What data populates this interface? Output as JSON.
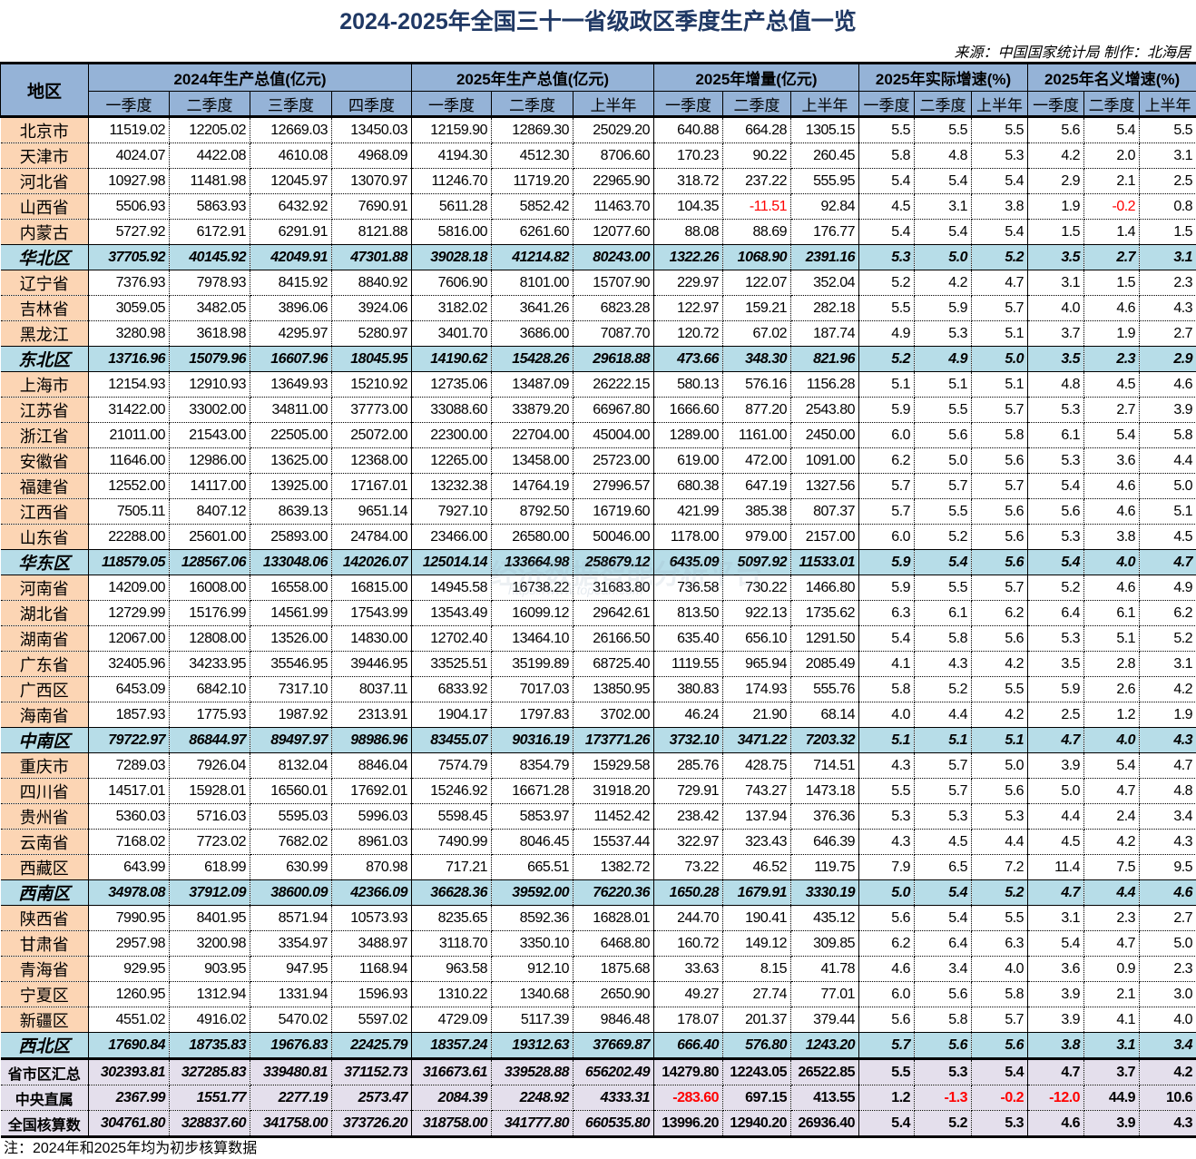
{
  "header": {
    "title": "2024-2025年全国三十一省级政区季度生产总值一览",
    "source": "来源：中国国家统计局  制作：北海居"
  },
  "table": {
    "region_header": "地区",
    "groups": [
      {
        "label": "2024年生产总值(亿元)",
        "span": 4
      },
      {
        "label": "2025年生产总值(亿元)",
        "span": 3
      },
      {
        "label": "2025年增量(亿元)",
        "span": 3
      },
      {
        "label": "2025年实际增速(%)",
        "span": 3
      },
      {
        "label": "2025年名义增速(%)",
        "span": 3
      }
    ],
    "sub_headers": [
      "一季度",
      "二季度",
      "三季度",
      "四季度",
      "一季度",
      "二季度",
      "上半年",
      "一季度",
      "二季度",
      "上半年",
      "一季度",
      "二季度",
      "上半年",
      "一季度",
      "二季度",
      "上半年"
    ],
    "rows": [
      {
        "type": "prov",
        "name": "北京市",
        "v": [
          "11519.02",
          "12205.02",
          "12669.03",
          "13450.03",
          "12159.90",
          "12869.30",
          "25029.20",
          "640.88",
          "664.28",
          "1305.15",
          "5.5",
          "5.5",
          "5.5",
          "5.6",
          "5.4",
          "5.5"
        ]
      },
      {
        "type": "prov",
        "name": "天津市",
        "v": [
          "4024.07",
          "4422.08",
          "4610.08",
          "4968.09",
          "4194.30",
          "4512.30",
          "8706.60",
          "170.23",
          "90.22",
          "260.45",
          "5.8",
          "4.8",
          "5.3",
          "4.2",
          "2.0",
          "3.1"
        ]
      },
      {
        "type": "prov",
        "name": "河北省",
        "v": [
          "10927.98",
          "11481.98",
          "12045.97",
          "13070.97",
          "11246.70",
          "11719.20",
          "22965.90",
          "318.72",
          "237.22",
          "555.95",
          "5.4",
          "5.4",
          "5.4",
          "2.9",
          "2.1",
          "2.5"
        ]
      },
      {
        "type": "prov",
        "name": "山西省",
        "v": [
          "5506.93",
          "5863.93",
          "6432.92",
          "7690.91",
          "5611.28",
          "5852.42",
          "11463.70",
          "104.35",
          "-11.51",
          "92.84",
          "4.5",
          "3.1",
          "3.8",
          "1.9",
          "-0.2",
          "0.8"
        ]
      },
      {
        "type": "prov",
        "name": "内蒙古",
        "v": [
          "5727.92",
          "6172.91",
          "6291.91",
          "8121.88",
          "5816.00",
          "6261.60",
          "12077.60",
          "88.08",
          "88.69",
          "176.77",
          "5.4",
          "5.4",
          "5.4",
          "1.5",
          "1.4",
          "1.5"
        ]
      },
      {
        "type": "sum",
        "name": "华北区",
        "v": [
          "37705.92",
          "40145.92",
          "42049.91",
          "47301.88",
          "39028.18",
          "41214.82",
          "80243.00",
          "1322.26",
          "1068.90",
          "2391.16",
          "5.3",
          "5.0",
          "5.2",
          "3.5",
          "2.7",
          "3.1"
        ]
      },
      {
        "type": "prov",
        "name": "辽宁省",
        "v": [
          "7376.93",
          "7978.93",
          "8415.92",
          "8840.92",
          "7606.90",
          "8101.00",
          "15707.90",
          "229.97",
          "122.07",
          "352.04",
          "5.2",
          "4.2",
          "4.7",
          "3.1",
          "1.5",
          "2.3"
        ]
      },
      {
        "type": "prov",
        "name": "吉林省",
        "v": [
          "3059.05",
          "3482.05",
          "3896.06",
          "3924.06",
          "3182.02",
          "3641.26",
          "6823.28",
          "122.97",
          "159.21",
          "282.18",
          "5.5",
          "5.9",
          "5.7",
          "4.0",
          "4.6",
          "4.3"
        ]
      },
      {
        "type": "prov",
        "name": "黑龙江",
        "v": [
          "3280.98",
          "3618.98",
          "4295.97",
          "5280.97",
          "3401.70",
          "3686.00",
          "7087.70",
          "120.72",
          "67.02",
          "187.74",
          "4.9",
          "5.3",
          "5.1",
          "3.7",
          "1.9",
          "2.7"
        ]
      },
      {
        "type": "sum",
        "name": "东北区",
        "v": [
          "13716.96",
          "15079.96",
          "16607.96",
          "18045.95",
          "14190.62",
          "15428.26",
          "29618.88",
          "473.66",
          "348.30",
          "821.96",
          "5.2",
          "4.9",
          "5.0",
          "3.5",
          "2.3",
          "2.9"
        ]
      },
      {
        "type": "prov",
        "name": "上海市",
        "v": [
          "12154.93",
          "12910.93",
          "13649.93",
          "15210.92",
          "12735.06",
          "13487.09",
          "26222.15",
          "580.13",
          "576.16",
          "1156.28",
          "5.1",
          "5.1",
          "5.1",
          "4.8",
          "4.5",
          "4.6"
        ]
      },
      {
        "type": "prov",
        "name": "江苏省",
        "v": [
          "31422.00",
          "33002.00",
          "34811.00",
          "37773.00",
          "33088.60",
          "33879.20",
          "66967.80",
          "1666.60",
          "877.20",
          "2543.80",
          "5.9",
          "5.5",
          "5.7",
          "5.3",
          "2.7",
          "3.9"
        ]
      },
      {
        "type": "prov",
        "name": "浙江省",
        "v": [
          "21011.00",
          "21543.00",
          "22505.00",
          "25072.00",
          "22300.00",
          "22704.00",
          "45004.00",
          "1289.00",
          "1161.00",
          "2450.00",
          "6.0",
          "5.6",
          "5.8",
          "6.1",
          "5.4",
          "5.8"
        ]
      },
      {
        "type": "prov",
        "name": "安徽省",
        "v": [
          "11646.00",
          "12986.00",
          "13625.00",
          "12368.00",
          "12265.00",
          "13458.00",
          "25723.00",
          "619.00",
          "472.00",
          "1091.00",
          "6.2",
          "5.0",
          "5.6",
          "5.3",
          "3.6",
          "4.4"
        ]
      },
      {
        "type": "prov",
        "name": "福建省",
        "v": [
          "12552.00",
          "14117.00",
          "13925.00",
          "17167.01",
          "13232.38",
          "14764.19",
          "27996.57",
          "680.38",
          "647.19",
          "1327.56",
          "5.7",
          "5.7",
          "5.7",
          "5.4",
          "4.6",
          "5.0"
        ]
      },
      {
        "type": "prov",
        "name": "江西省",
        "v": [
          "7505.11",
          "8407.12",
          "8639.13",
          "9651.14",
          "7927.10",
          "8792.50",
          "16719.60",
          "421.99",
          "385.38",
          "807.37",
          "5.7",
          "5.5",
          "5.6",
          "5.6",
          "4.6",
          "5.1"
        ]
      },
      {
        "type": "prov",
        "name": "山东省",
        "v": [
          "22288.00",
          "25601.00",
          "25893.00",
          "24784.00",
          "23466.00",
          "26580.00",
          "50046.00",
          "1178.00",
          "979.00",
          "2157.00",
          "6.0",
          "5.2",
          "5.6",
          "5.3",
          "3.8",
          "4.5"
        ]
      },
      {
        "type": "sum",
        "name": "华东区",
        "v": [
          "118579.05",
          "128567.06",
          "133048.06",
          "142026.07",
          "125014.14",
          "133664.98",
          "258679.12",
          "6435.09",
          "5097.92",
          "11533.01",
          "5.9",
          "5.4",
          "5.6",
          "5.4",
          "4.0",
          "4.7"
        ]
      },
      {
        "type": "prov",
        "name": "河南省",
        "v": [
          "14209.00",
          "16008.00",
          "16558.00",
          "16815.00",
          "14945.58",
          "16738.22",
          "31683.80",
          "736.58",
          "730.22",
          "1466.80",
          "5.9",
          "5.5",
          "5.7",
          "5.2",
          "4.6",
          "4.9"
        ]
      },
      {
        "type": "prov",
        "name": "湖北省",
        "v": [
          "12729.99",
          "15176.99",
          "14561.99",
          "17543.99",
          "13543.49",
          "16099.12",
          "29642.61",
          "813.50",
          "922.13",
          "1735.62",
          "6.3",
          "6.1",
          "6.2",
          "6.4",
          "6.1",
          "6.2"
        ]
      },
      {
        "type": "prov",
        "name": "湖南省",
        "v": [
          "12067.00",
          "12808.00",
          "13526.00",
          "14830.00",
          "12702.40",
          "13464.10",
          "26166.50",
          "635.40",
          "656.10",
          "1291.50",
          "5.4",
          "5.8",
          "5.6",
          "5.3",
          "5.1",
          "5.2"
        ]
      },
      {
        "type": "prov",
        "name": "广东省",
        "v": [
          "32405.96",
          "34233.95",
          "35546.95",
          "39446.95",
          "33525.51",
          "35199.89",
          "68725.40",
          "1119.55",
          "965.94",
          "2085.49",
          "4.1",
          "4.3",
          "4.2",
          "3.5",
          "2.8",
          "3.1"
        ]
      },
      {
        "type": "prov",
        "name": "广西区",
        "v": [
          "6453.09",
          "6842.10",
          "7317.10",
          "8037.11",
          "6833.92",
          "7017.03",
          "13850.95",
          "380.83",
          "174.93",
          "555.76",
          "5.8",
          "5.2",
          "5.5",
          "5.9",
          "2.6",
          "4.2"
        ]
      },
      {
        "type": "prov",
        "name": "海南省",
        "v": [
          "1857.93",
          "1775.93",
          "1987.92",
          "2313.91",
          "1904.17",
          "1797.83",
          "3702.00",
          "46.24",
          "21.90",
          "68.14",
          "4.0",
          "4.4",
          "4.2",
          "2.5",
          "1.2",
          "1.9"
        ]
      },
      {
        "type": "sum",
        "name": "中南区",
        "v": [
          "79722.97",
          "86844.97",
          "89497.97",
          "98986.96",
          "83455.07",
          "90316.19",
          "173771.26",
          "3732.10",
          "3471.22",
          "7203.32",
          "5.1",
          "5.1",
          "5.1",
          "4.7",
          "4.0",
          "4.3"
        ]
      },
      {
        "type": "prov",
        "name": "重庆市",
        "v": [
          "7289.03",
          "7926.04",
          "8132.04",
          "8846.04",
          "7574.79",
          "8354.79",
          "15929.58",
          "285.76",
          "428.75",
          "714.51",
          "4.3",
          "5.7",
          "5.0",
          "3.9",
          "5.4",
          "4.7"
        ]
      },
      {
        "type": "prov",
        "name": "四川省",
        "v": [
          "14517.01",
          "15928.01",
          "16560.01",
          "17692.01",
          "15246.92",
          "16671.28",
          "31918.20",
          "729.91",
          "743.27",
          "1473.18",
          "5.5",
          "5.7",
          "5.6",
          "5.0",
          "4.7",
          "4.8"
        ]
      },
      {
        "type": "prov",
        "name": "贵州省",
        "v": [
          "5360.03",
          "5716.03",
          "5595.03",
          "5996.03",
          "5598.45",
          "5853.97",
          "11452.42",
          "238.42",
          "137.94",
          "376.36",
          "5.3",
          "5.3",
          "5.3",
          "4.4",
          "2.4",
          "3.4"
        ]
      },
      {
        "type": "prov",
        "name": "云南省",
        "v": [
          "7168.02",
          "7723.02",
          "7682.02",
          "8961.03",
          "7490.99",
          "8046.45",
          "15537.44",
          "322.97",
          "323.43",
          "646.39",
          "4.3",
          "4.5",
          "4.4",
          "4.5",
          "4.2",
          "4.3"
        ]
      },
      {
        "type": "prov",
        "name": "西藏区",
        "v": [
          "643.99",
          "618.99",
          "630.99",
          "870.98",
          "717.21",
          "665.51",
          "1382.72",
          "73.22",
          "46.52",
          "119.75",
          "7.9",
          "6.5",
          "7.2",
          "11.4",
          "7.5",
          "9.5"
        ]
      },
      {
        "type": "sum",
        "name": "西南区",
        "v": [
          "34978.08",
          "37912.09",
          "38600.09",
          "42366.09",
          "36628.36",
          "39592.00",
          "76220.36",
          "1650.28",
          "1679.91",
          "3330.19",
          "5.0",
          "5.4",
          "5.2",
          "4.7",
          "4.4",
          "4.6"
        ]
      },
      {
        "type": "prov",
        "name": "陕西省",
        "v": [
          "7990.95",
          "8401.95",
          "8571.94",
          "10573.93",
          "8235.65",
          "8592.36",
          "16828.01",
          "244.70",
          "190.41",
          "435.12",
          "5.6",
          "5.4",
          "5.5",
          "3.1",
          "2.3",
          "2.7"
        ]
      },
      {
        "type": "prov",
        "name": "甘肃省",
        "v": [
          "2957.98",
          "3200.98",
          "3354.97",
          "3488.97",
          "3118.70",
          "3350.10",
          "6468.80",
          "160.72",
          "149.12",
          "309.85",
          "6.2",
          "6.4",
          "6.3",
          "5.4",
          "4.7",
          "5.0"
        ]
      },
      {
        "type": "prov",
        "name": "青海省",
        "v": [
          "929.95",
          "903.95",
          "947.95",
          "1168.94",
          "963.58",
          "912.10",
          "1875.68",
          "33.63",
          "8.15",
          "41.78",
          "4.6",
          "3.4",
          "4.0",
          "3.6",
          "0.9",
          "2.3"
        ]
      },
      {
        "type": "prov",
        "name": "宁夏区",
        "v": [
          "1260.95",
          "1312.94",
          "1331.94",
          "1596.93",
          "1310.22",
          "1340.68",
          "2650.90",
          "49.27",
          "27.74",
          "77.01",
          "6.0",
          "5.6",
          "5.8",
          "3.9",
          "2.1",
          "3.0"
        ]
      },
      {
        "type": "prov",
        "name": "新疆区",
        "v": [
          "4551.02",
          "4916.02",
          "5470.02",
          "5597.02",
          "4729.09",
          "5117.39",
          "9846.48",
          "178.07",
          "201.37",
          "379.44",
          "5.6",
          "5.8",
          "5.7",
          "3.9",
          "4.1",
          "4.0"
        ]
      },
      {
        "type": "sum",
        "name": "西北区",
        "v": [
          "17690.84",
          "18735.83",
          "19676.83",
          "22425.79",
          "18357.24",
          "19312.63",
          "37669.87",
          "666.40",
          "576.80",
          "1243.20",
          "5.7",
          "5.6",
          "5.6",
          "3.8",
          "3.1",
          "3.4"
        ]
      },
      {
        "type": "tot",
        "name": "省市区汇总",
        "v": [
          "302393.81",
          "327285.83",
          "339480.81",
          "371152.73",
          "316673.61",
          "339528.88",
          "656202.49",
          "14279.80",
          "12243.05",
          "26522.85",
          "5.5",
          "5.3",
          "5.4",
          "4.7",
          "3.7",
          "4.2"
        ]
      },
      {
        "type": "tot",
        "name": "中央直属",
        "v": [
          "2367.99",
          "1551.77",
          "2277.19",
          "2573.47",
          "2084.39",
          "2248.92",
          "4333.31",
          "-283.60",
          "697.15",
          "413.55",
          "1.2",
          "-1.3",
          "-0.2",
          "-12.0",
          "44.9",
          "10.6"
        ]
      },
      {
        "type": "tot",
        "name": "全国核算数",
        "v": [
          "304761.80",
          "328837.60",
          "341758.00",
          "373726.20",
          "318758.00",
          "341777.80",
          "660535.80",
          "13996.20",
          "12940.20",
          "26936.40",
          "5.4",
          "5.2",
          "5.3",
          "4.6",
          "3.9",
          "4.3"
        ]
      }
    ]
  },
  "footer": {
    "note": "注：2024年和2025年均为初步核算数据"
  },
  "watermark": {
    "text": "经济数据智能分析平台",
    "url": "https://www.topeah.com"
  },
  "colors": {
    "title": "#1f3864",
    "header_bg": "#95b3d7",
    "region_bg": "#fcd5b4",
    "subtotal_bg": "#b7dde8",
    "total_bg": "#e4dfec",
    "negative": "#ff0000"
  }
}
